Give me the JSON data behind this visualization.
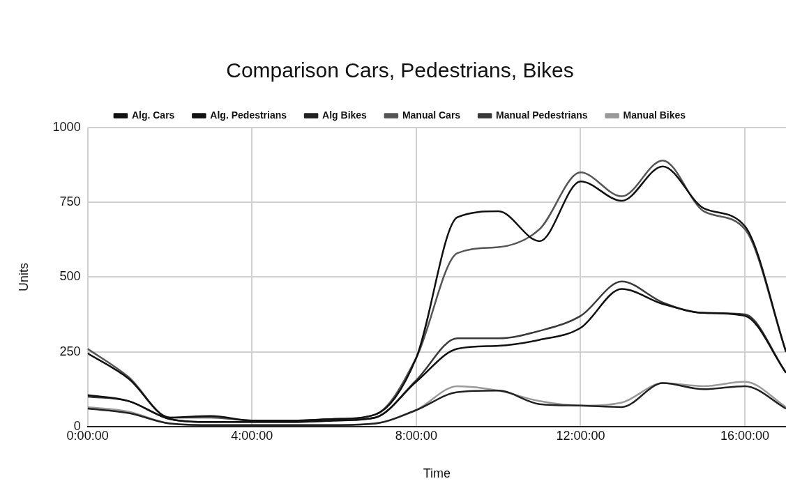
{
  "chart_data": {
    "type": "line",
    "title": "Comparison Cars, Pedestrians, Bikes",
    "xlabel": "Time",
    "ylabel": "Units",
    "x": [
      0,
      1,
      2,
      3,
      4,
      5,
      6,
      7,
      8,
      9,
      10,
      11,
      12,
      13,
      14,
      15,
      16,
      17
    ],
    "xlim": [
      0,
      17
    ],
    "xticks": [
      {
        "value": 0,
        "label": "0:00:00"
      },
      {
        "value": 4,
        "label": "4:00:00"
      },
      {
        "value": 8,
        "label": "8:00:00"
      },
      {
        "value": 12,
        "label": "12:00:00"
      },
      {
        "value": 16,
        "label": "16:00:00"
      }
    ],
    "ylim": [
      0,
      1000
    ],
    "yticks": [
      0,
      250,
      500,
      750,
      1000
    ],
    "grid": true,
    "legend": "top",
    "marker": "none",
    "line_style": "solid",
    "series": [
      {
        "name": "Alg. Cars",
        "color": "#111111",
        "values": [
          245,
          160,
          30,
          35,
          20,
          20,
          25,
          40,
          230,
          700,
          720,
          620,
          820,
          755,
          870,
          730,
          670,
          250
        ]
      },
      {
        "name": "Alg. Pedestrians",
        "color": "#111111",
        "values": [
          105,
          85,
          25,
          15,
          15,
          15,
          20,
          30,
          150,
          260,
          270,
          290,
          330,
          460,
          410,
          380,
          370,
          180
        ]
      },
      {
        "name": "Alg Bikes",
        "color": "#222222",
        "values": [
          60,
          45,
          10,
          5,
          5,
          5,
          5,
          10,
          55,
          115,
          120,
          75,
          70,
          65,
          145,
          125,
          135,
          60
        ]
      },
      {
        "name": "Manual Cars",
        "color": "#555555",
        "values": [
          260,
          165,
          30,
          30,
          20,
          20,
          25,
          40,
          230,
          580,
          600,
          660,
          850,
          770,
          890,
          720,
          660,
          250
        ]
      },
      {
        "name": "Manual Pedestrians",
        "color": "#3a3a3a",
        "values": [
          100,
          85,
          25,
          15,
          15,
          15,
          20,
          30,
          155,
          295,
          295,
          320,
          370,
          485,
          415,
          380,
          375,
          180
        ]
      },
      {
        "name": "Manual Bikes",
        "color": "#999999",
        "values": [
          65,
          50,
          10,
          5,
          5,
          5,
          5,
          10,
          55,
          135,
          120,
          85,
          70,
          80,
          145,
          135,
          150,
          65
        ]
      }
    ]
  }
}
